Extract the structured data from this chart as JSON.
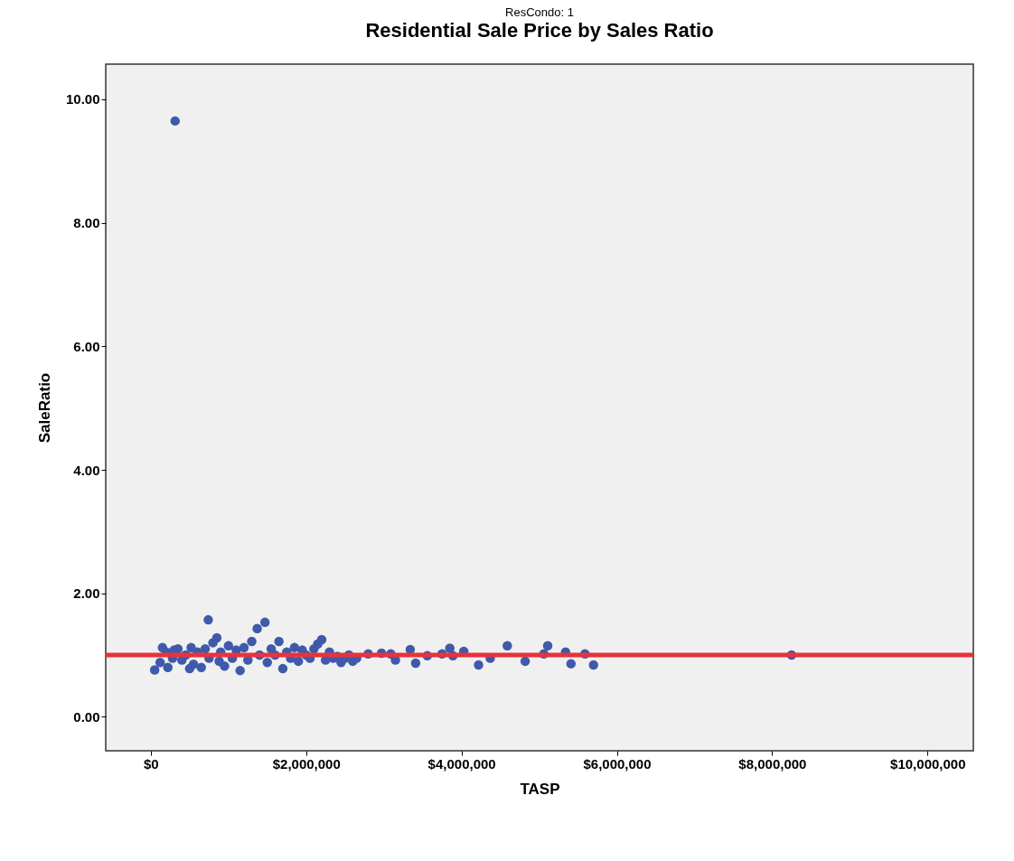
{
  "chart_data": {
    "type": "scatter",
    "title": "Residential Sale Price by Sales Ratio",
    "subtitle": "ResCondo: 1",
    "xlabel": "TASP",
    "ylabel": "SaleRatio",
    "xlim": [
      -580000,
      10590000
    ],
    "ylim": [
      -0.55,
      10.57
    ],
    "xticks": [
      {
        "value": 0,
        "label": "$0"
      },
      {
        "value": 2000000,
        "label": "$2,000,000"
      },
      {
        "value": 4000000,
        "label": "$4,000,000"
      },
      {
        "value": 6000000,
        "label": "$6,000,000"
      },
      {
        "value": 8000000,
        "label": "$8,000,000"
      },
      {
        "value": 10000000,
        "label": "$10,000,000"
      }
    ],
    "yticks": [
      {
        "value": 0,
        "label": "0.00"
      },
      {
        "value": 2,
        "label": "2.00"
      },
      {
        "value": 4,
        "label": "4.00"
      },
      {
        "value": 6,
        "label": "6.00"
      },
      {
        "value": 8,
        "label": "8.00"
      },
      {
        "value": 10,
        "label": "10.00"
      }
    ],
    "grid": false,
    "marker": "circle",
    "legend": false,
    "series": [
      {
        "color": "#3f5aaa",
        "x": [
          313000,
          50000,
          120000,
          150000,
          200000,
          220000,
          280000,
          300000,
          350000,
          400000,
          450000,
          500000,
          520000,
          550000,
          600000,
          650000,
          700000,
          740000,
          750000,
          800000,
          850000,
          880000,
          900000,
          950000,
          1000000,
          1050000,
          1100000,
          1150000,
          1200000,
          1250000,
          1300000,
          1370000,
          1400000,
          1470000,
          1500000,
          1550000,
          1600000,
          1650000,
          1700000,
          1750000,
          1800000,
          1850000,
          1900000,
          1950000,
          2000000,
          2050000,
          2100000,
          2150000,
          2200000,
          2250000,
          2300000,
          2350000,
          2400000,
          2450000,
          2500000,
          2550000,
          2600000,
          2650000,
          2800000,
          2970000,
          3090000,
          3150000,
          3340000,
          3410000,
          3560000,
          3750000,
          3850000,
          3890000,
          4030000,
          4220000,
          4370000,
          4590000,
          4820000,
          5060000,
          5110000,
          5340000,
          5410000,
          5590000,
          5700000,
          8250000
        ],
        "values": [
          9.65,
          0.76,
          0.88,
          1.12,
          1.05,
          0.8,
          0.95,
          1.08,
          1.1,
          0.92,
          1.0,
          0.78,
          1.12,
          0.85,
          1.05,
          0.8,
          1.1,
          1.57,
          0.95,
          1.2,
          1.28,
          0.9,
          1.05,
          0.82,
          1.15,
          0.95,
          1.08,
          0.75,
          1.12,
          0.92,
          1.22,
          1.43,
          1.0,
          1.53,
          0.88,
          1.1,
          1.0,
          1.22,
          0.78,
          1.05,
          0.95,
          1.12,
          0.9,
          1.08,
          1.0,
          0.95,
          1.1,
          1.18,
          1.25,
          0.92,
          1.05,
          0.95,
          0.98,
          0.88,
          0.95,
          1.0,
          0.9,
          0.95,
          1.02,
          1.03,
          1.02,
          0.92,
          1.09,
          0.87,
          0.99,
          1.02,
          1.11,
          0.99,
          1.06,
          0.84,
          0.95,
          1.15,
          0.9,
          1.02,
          1.15,
          1.05,
          0.86,
          1.02,
          0.84,
          1.0
        ]
      }
    ],
    "ref_lines": [
      {
        "axis": "y",
        "value": 1,
        "color": "#e8323c"
      }
    ]
  }
}
